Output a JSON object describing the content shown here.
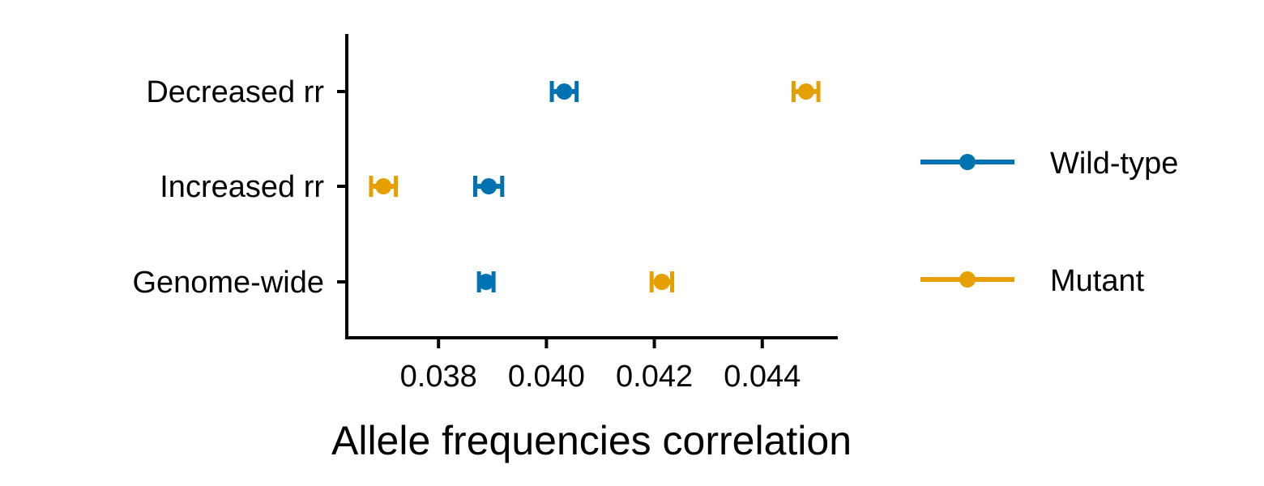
{
  "chart_data": {
    "type": "scatter",
    "title": "",
    "xlabel": "Allele frequencies correlation",
    "ylabel": "",
    "categories": [
      "Genome-wide",
      "Increased rr",
      "Decreased rr"
    ],
    "xlim": [
      0.0363,
      0.0454
    ],
    "xticks": [
      "0.038",
      "0.040",
      "0.042",
      "0.044"
    ],
    "grid": false,
    "legend_position": "right",
    "series": [
      {
        "name": "Wild-type",
        "color": "#0072B2",
        "points": [
          {
            "category": "Genome-wide",
            "value": 0.03888,
            "low": 0.03875,
            "high": 0.03902
          },
          {
            "category": "Increased rr",
            "value": 0.03893,
            "low": 0.03868,
            "high": 0.03918
          },
          {
            "category": "Decreased rr",
            "value": 0.04033,
            "low": 0.0401,
            "high": 0.04056
          }
        ]
      },
      {
        "name": "Mutant",
        "color": "#E69F00",
        "points": [
          {
            "category": "Genome-wide",
            "value": 0.04214,
            "low": 0.04195,
            "high": 0.04233
          },
          {
            "category": "Increased rr",
            "value": 0.03698,
            "low": 0.03675,
            "high": 0.03721
          },
          {
            "category": "Decreased rr",
            "value": 0.04481,
            "low": 0.04458,
            "high": 0.04504
          }
        ]
      }
    ]
  }
}
